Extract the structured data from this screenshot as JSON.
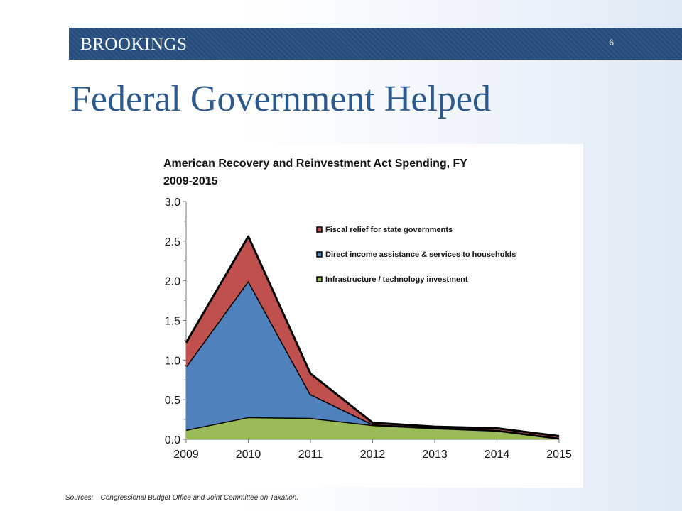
{
  "header": {
    "brand": "BROOKINGS",
    "slide_number": "6",
    "banner_color": "#264d7e"
  },
  "slide": {
    "title": "Federal Government Helped",
    "title_color": "#2c5a8c"
  },
  "chart_data": {
    "type": "area",
    "stacked": true,
    "title_line1": "American Recovery and Reinvestment Act Spending, FY",
    "title_line2": "2009-2015",
    "xlabel": "",
    "ylabel": "",
    "x": [
      "2009",
      "2010",
      "2011",
      "2012",
      "2013",
      "2014",
      "2015"
    ],
    "ylim": [
      0,
      3.0
    ],
    "yticks": [
      "0.0",
      "0.5",
      "1.0",
      "1.5",
      "2.0",
      "2.5",
      "3.0"
    ],
    "grid": false,
    "legend_position": "top-right",
    "series": [
      {
        "name": "Infrastructure / technology investment",
        "color": "#9bbb59",
        "values": [
          0.12,
          0.28,
          0.27,
          0.18,
          0.14,
          0.11,
          0.01
        ]
      },
      {
        "name": "Direct income assistance & services to households",
        "color": "#4f81bd",
        "values": [
          0.8,
          1.72,
          0.3,
          0.01,
          0.01,
          0.01,
          0.01
        ]
      },
      {
        "name": "Fiscal relief for state governments",
        "color": "#c0504d",
        "values": [
          0.3,
          0.56,
          0.26,
          0.02,
          0.01,
          0.02,
          0.02
        ]
      }
    ],
    "legend_order": [
      "Fiscal relief for state governments",
      "Direct income assistance & services to households",
      "Infrastructure / technology investment"
    ]
  },
  "footer": {
    "sources_label": "Sources:",
    "sources_text": "Congressional Budget Office and Joint Committee on Taxation."
  }
}
